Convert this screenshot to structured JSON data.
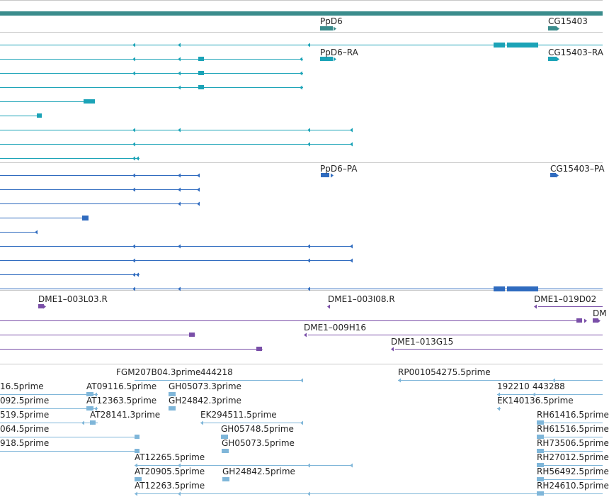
{
  "colors": {
    "gene": "#3a8c8c",
    "transcript_cg": "#1ba3b7",
    "transcript_fb": "#2f6bbf",
    "clone": "#7a4fa8",
    "est": "#7fb6d9",
    "divider": "#c8c8c8"
  },
  "gene_labels": [
    "PpD6",
    "CG15403"
  ],
  "transcript_cg_labels": [
    "PpD6–RA",
    "CG15403–RA"
  ],
  "transcript_fb_labels": [
    "PpD6–PA",
    "CG15403–PA"
  ],
  "clone_labels": [
    "DME1–003L03.R",
    "DME1–003I08.R",
    "DME1–019D02",
    "DM",
    "DME1–009H16",
    "DME1–013G15"
  ],
  "est_labels": [
    "FGM207B04.3prime",
    "444218",
    "RP001054275.5prime",
    "16.5prime",
    "AT09116.5prime",
    "GH05073.3prime",
    "192210",
    "443288",
    "092.5prime",
    "AT12363.5prime",
    "GH24842.3prime",
    "EK140136.5prime",
    "519.5prime",
    "AT28141.3prime",
    "EK294511.5prime",
    "RH61416.5prime",
    "064.5prime",
    "GH05748.5prime",
    "RH61516.5prime",
    "918.5prime",
    "GH05073.5prime",
    "RH73506.5prime",
    "AT12265.5prime",
    "RH27012.5prime",
    "AT20905.5prime",
    "GH24842.5prime",
    "RH56492.5prime",
    "AT12263.5prime",
    "RH24610.5prime"
  ]
}
